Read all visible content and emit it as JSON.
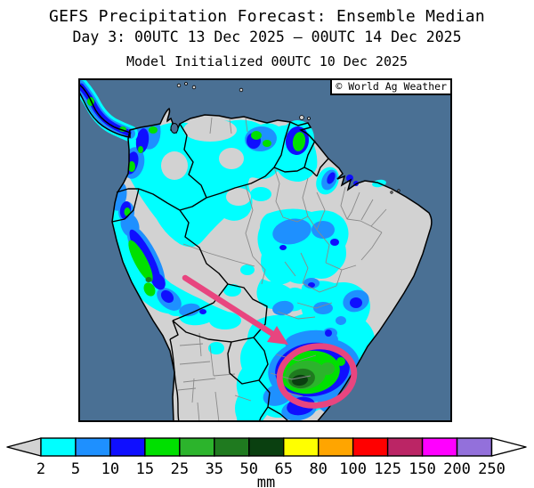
{
  "header": {
    "title": "GEFS Precipitation Forecast: Ensemble Median",
    "subtitle": "Day 3: 00UTC 13 Dec 2025 — 00UTC 14 Dec 2025",
    "initialization": "Model Initialized 00UTC 10 Dec 2025"
  },
  "map": {
    "copyright": "© World Ag Weather",
    "ocean_color": "#4a7094",
    "land_color": "#d2d2d2",
    "country_border_color": "#000000",
    "state_border_color": "#8a8a8a",
    "annotation_color": "#e8457f"
  },
  "legend": {
    "unit": "mm",
    "ticks": [
      2,
      5,
      10,
      15,
      25,
      35,
      50,
      65,
      80,
      100,
      125,
      150,
      200,
      250
    ],
    "colors": [
      "#00ffff",
      "#1e90ff",
      "#0f0fff",
      "#00e000",
      "#2cb42c",
      "#1f7a1f",
      "#0a4010",
      "#ffff00",
      "#ffa500",
      "#ff0000",
      "#bb2565",
      "#ff00ff",
      "#9370db"
    ],
    "below_range_color": "#d2d2d2",
    "above_range_color": "#ffffff"
  }
}
